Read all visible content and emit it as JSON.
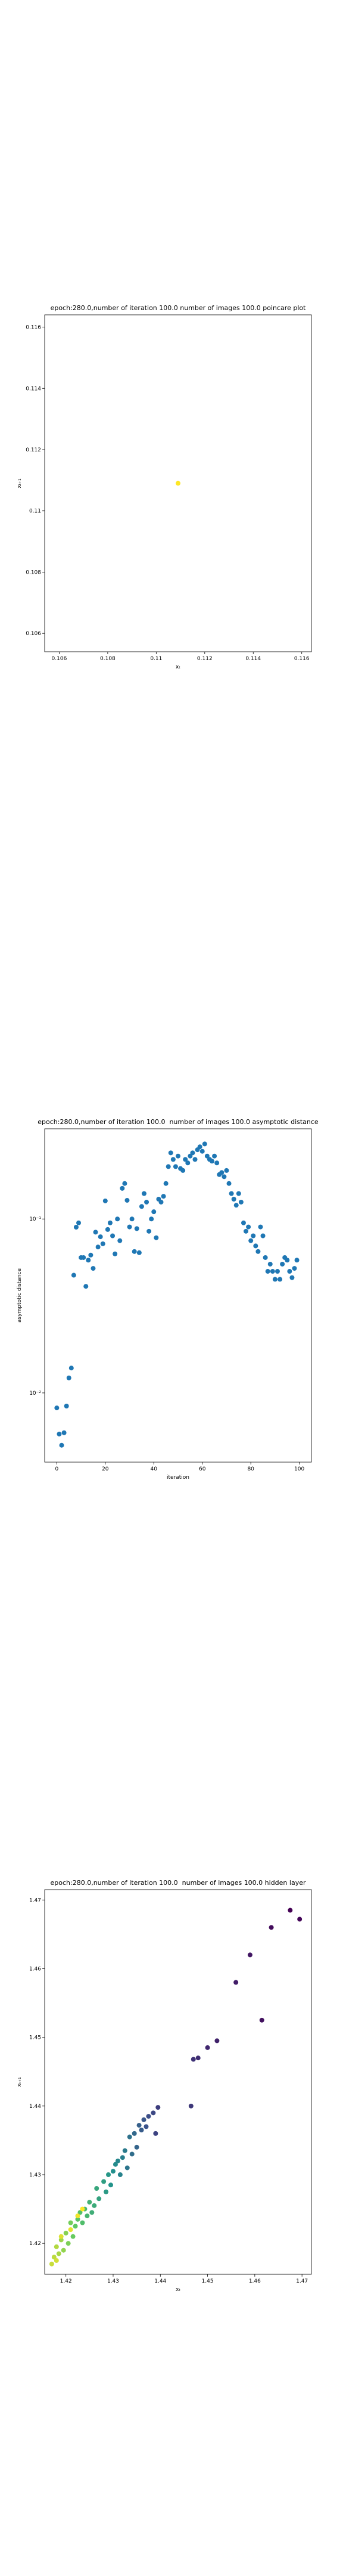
{
  "chart_data": [
    {
      "type": "scatter",
      "title": "epoch:280.0,number of iteration 100.0 number of images 100.0 poincare plot",
      "xlabel": "xₜ",
      "ylabel": "xₜ₊₁",
      "x": [
        0.1109
      ],
      "y": [
        0.1109
      ],
      "color": "#fde725",
      "xlim": [
        0.1054,
        0.1164
      ],
      "ylim": [
        0.1054,
        0.1164
      ],
      "xticks": [
        0.106,
        0.108,
        0.11,
        0.112,
        0.114,
        0.116
      ],
      "yticks": [
        0.106,
        0.108,
        0.11,
        0.112,
        0.114,
        0.116
      ]
    },
    {
      "type": "scatter",
      "title": "epoch:280.0,number of iteration 100.0  number of images 100.0 asymptotic distance",
      "xlabel": "iteration",
      "ylabel": "asymptotic distance",
      "yscale": "log",
      "color": "#1f77b4",
      "x": [
        0,
        1,
        2,
        3,
        4,
        5,
        6,
        7,
        8,
        9,
        10,
        11,
        12,
        13,
        14,
        15,
        16,
        17,
        18,
        19,
        20,
        21,
        22,
        23,
        24,
        25,
        26,
        27,
        28,
        29,
        30,
        31,
        32,
        33,
        34,
        35,
        36,
        37,
        38,
        39,
        40,
        41,
        42,
        43,
        44,
        45,
        46,
        47,
        48,
        49,
        50,
        51,
        52,
        53,
        54,
        55,
        56,
        57,
        58,
        59,
        60,
        61,
        62,
        63,
        64,
        65,
        66,
        67,
        68,
        69,
        70,
        71,
        72,
        73,
        74,
        75,
        76,
        77,
        78,
        79,
        80,
        81,
        82,
        83,
        84,
        85,
        86,
        87,
        88,
        89,
        90,
        91,
        92,
        93,
        94,
        95,
        96,
        97,
        98,
        99
      ],
      "y": [
        0.0082,
        0.0058,
        0.005,
        0.0059,
        0.0084,
        0.0122,
        0.0139,
        0.0475,
        0.0897,
        0.095,
        0.06,
        0.06,
        0.041,
        0.058,
        0.062,
        0.052,
        0.084,
        0.069,
        0.079,
        0.072,
        0.127,
        0.087,
        0.095,
        0.08,
        0.063,
        0.1,
        0.075,
        0.15,
        0.16,
        0.128,
        0.09,
        0.1,
        0.065,
        0.088,
        0.064,
        0.118,
        0.14,
        0.125,
        0.085,
        0.1,
        0.11,
        0.078,
        0.13,
        0.125,
        0.135,
        0.16,
        0.2,
        0.24,
        0.22,
        0.2,
        0.23,
        0.195,
        0.19,
        0.22,
        0.21,
        0.23,
        0.24,
        0.22,
        0.25,
        0.26,
        0.245,
        0.27,
        0.23,
        0.22,
        0.215,
        0.23,
        0.21,
        0.18,
        0.185,
        0.175,
        0.19,
        0.16,
        0.14,
        0.13,
        0.12,
        0.14,
        0.125,
        0.095,
        0.085,
        0.09,
        0.075,
        0.08,
        0.07,
        0.065,
        0.09,
        0.08,
        0.06,
        0.05,
        0.055,
        0.05,
        0.045,
        0.05,
        0.045,
        0.055,
        0.06,
        0.058,
        0.05,
        0.046,
        0.052,
        0.058
      ],
      "xlim": [
        -5,
        105
      ],
      "ylim": [
        0.004,
        0.33
      ],
      "xticks": [
        0,
        20,
        40,
        60,
        80,
        100
      ],
      "yticks": [
        {
          "value": 0.01,
          "label": "10⁻²"
        },
        {
          "value": 0.1,
          "label": "10⁻¹"
        }
      ]
    },
    {
      "type": "scatter",
      "title": "epoch:280.0,number of iteration 100.0  number of images 100.0 hidden layer",
      "xlabel": "xₜ",
      "ylabel": "xₜ₊₁",
      "colormap": "viridis",
      "x": [
        1.4675,
        1.4695,
        1.4635,
        1.4615,
        1.459,
        1.456,
        1.452,
        1.45,
        1.448,
        1.447,
        1.4465,
        1.4395,
        1.439,
        1.4385,
        1.4375,
        1.437,
        1.4365,
        1.436,
        1.4355,
        1.435,
        1.4345,
        1.434,
        1.4335,
        1.433,
        1.4325,
        1.432,
        1.4315,
        1.431,
        1.4305,
        1.43,
        1.4295,
        1.429,
        1.4285,
        1.428,
        1.427,
        1.4265,
        1.426,
        1.4255,
        1.425,
        1.4245,
        1.424,
        1.4235,
        1.423,
        1.4225,
        1.422,
        1.4215,
        1.421,
        1.4205,
        1.42,
        1.4195,
        1.419,
        1.4185,
        1.418,
        1.4175,
        1.417,
        1.418,
        1.419,
        1.421,
        1.4225,
        1.4235
      ],
      "y": [
        1.4685,
        1.4672,
        1.466,
        1.4525,
        1.462,
        1.458,
        1.4495,
        1.4485,
        1.447,
        1.4468,
        1.44,
        1.4398,
        1.436,
        1.439,
        1.4385,
        1.437,
        1.438,
        1.4365,
        1.4372,
        1.434,
        1.436,
        1.433,
        1.4355,
        1.431,
        1.4335,
        1.4325,
        1.43,
        1.432,
        1.4315,
        1.4305,
        1.4285,
        1.43,
        1.4275,
        1.429,
        1.4265,
        1.428,
        1.4255,
        1.4245,
        1.426,
        1.424,
        1.425,
        1.423,
        1.4245,
        1.4235,
        1.4225,
        1.421,
        1.423,
        1.42,
        1.4215,
        1.419,
        1.4205,
        1.4185,
        1.4195,
        1.418,
        1.417,
        1.4175,
        1.421,
        1.422,
        1.424,
        1.425
      ],
      "xlim": [
        1.4155,
        1.472
      ],
      "ylim": [
        1.4155,
        1.4715
      ],
      "xticks": [
        1.42,
        1.43,
        1.44,
        1.45,
        1.46,
        1.47
      ],
      "yticks": [
        1.42,
        1.43,
        1.44,
        1.45,
        1.46,
        1.47
      ]
    }
  ]
}
